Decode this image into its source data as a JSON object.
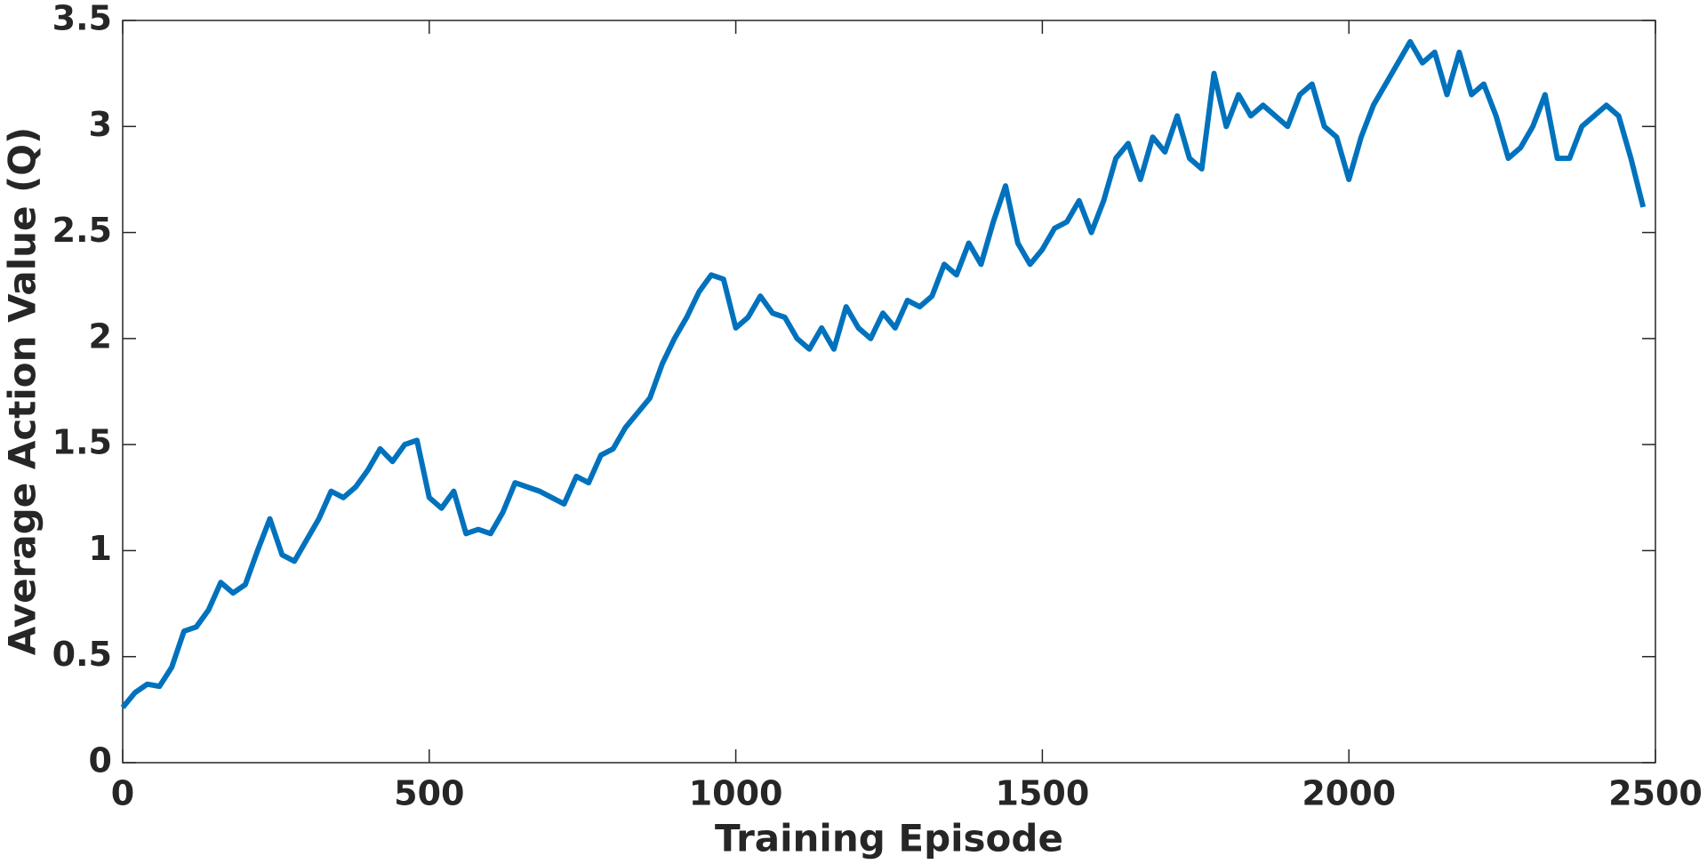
{
  "chart_data": {
    "type": "line",
    "x_label": "Training Episode",
    "y_label": "Average Action Value (Q)",
    "x": [
      0,
      20,
      40,
      60,
      80,
      100,
      120,
      140,
      160,
      180,
      200,
      220,
      240,
      260,
      280,
      300,
      320,
      340,
      360,
      380,
      400,
      420,
      440,
      460,
      480,
      500,
      520,
      540,
      560,
      580,
      600,
      620,
      640,
      660,
      680,
      700,
      720,
      740,
      760,
      780,
      800,
      820,
      840,
      860,
      880,
      900,
      920,
      940,
      960,
      980,
      1000,
      1020,
      1040,
      1060,
      1080,
      1100,
      1120,
      1140,
      1160,
      1180,
      1200,
      1220,
      1240,
      1260,
      1280,
      1300,
      1320,
      1340,
      1360,
      1380,
      1400,
      1420,
      1440,
      1460,
      1480,
      1500,
      1520,
      1540,
      1560,
      1580,
      1600,
      1620,
      1640,
      1660,
      1680,
      1700,
      1720,
      1740,
      1760,
      1780,
      1800,
      1820,
      1840,
      1860,
      1880,
      1900,
      1920,
      1940,
      1960,
      1980,
      2000,
      2020,
      2040,
      2060,
      2080,
      2100,
      2120,
      2140,
      2160,
      2180,
      2200,
      2220,
      2240,
      2260,
      2280,
      2300,
      2320,
      2340,
      2360,
      2380,
      2400,
      2420,
      2440,
      2460,
      2480
    ],
    "series": [
      {
        "color": "#0072BD",
        "values": [
          0.26,
          0.33,
          0.37,
          0.36,
          0.45,
          0.62,
          0.64,
          0.72,
          0.85,
          0.8,
          0.84,
          1.0,
          1.15,
          0.98,
          0.95,
          1.05,
          1.15,
          1.28,
          1.25,
          1.3,
          1.38,
          1.48,
          1.42,
          1.5,
          1.52,
          1.25,
          1.2,
          1.28,
          1.08,
          1.1,
          1.08,
          1.18,
          1.32,
          1.3,
          1.28,
          1.25,
          1.22,
          1.35,
          1.32,
          1.45,
          1.48,
          1.58,
          1.65,
          1.72,
          1.88,
          2.0,
          2.1,
          2.22,
          2.3,
          2.28,
          2.05,
          2.1,
          2.2,
          2.12,
          2.1,
          2.0,
          1.95,
          2.05,
          1.95,
          2.15,
          2.05,
          2.0,
          2.12,
          2.05,
          2.18,
          2.15,
          2.2,
          2.35,
          2.3,
          2.45,
          2.35,
          2.55,
          2.72,
          2.45,
          2.35,
          2.42,
          2.52,
          2.55,
          2.65,
          2.5,
          2.65,
          2.85,
          2.92,
          2.75,
          2.95,
          2.88,
          3.05,
          2.85,
          2.8,
          3.25,
          3.0,
          3.15,
          3.05,
          3.1,
          3.05,
          3.0,
          3.15,
          3.2,
          3.0,
          2.95,
          2.75,
          2.95,
          3.1,
          3.2,
          3.3,
          3.4,
          3.3,
          3.35,
          3.15,
          3.35,
          3.15,
          3.2,
          3.05,
          2.85,
          2.9,
          3.0,
          3.15,
          2.85,
          2.85,
          3.0,
          3.05,
          3.1,
          3.05,
          2.85,
          2.62
        ]
      }
    ],
    "xlim": [
      0,
      2500
    ],
    "xticks": [
      0,
      500,
      1000,
      1500,
      2000,
      2500
    ],
    "ylim": [
      0,
      3.5
    ],
    "yticks": [
      0,
      0.5,
      1,
      1.5,
      2,
      2.5,
      3,
      3.5
    ],
    "grid": false
  }
}
